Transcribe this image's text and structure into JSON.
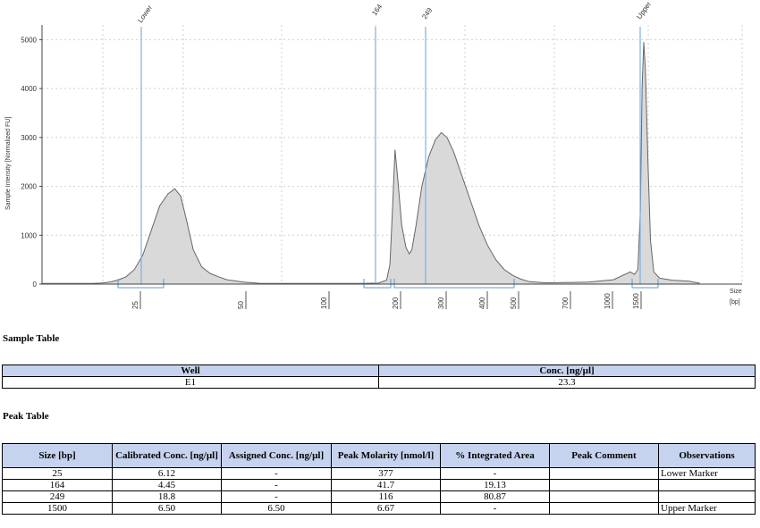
{
  "chart_data": {
    "type": "area",
    "ylabel": "Sample Intensity [Normalized FU]",
    "xlabel": "Size",
    "xunit": "[bp]",
    "ylim": [
      0,
      5300
    ],
    "yticks": [
      0,
      1000,
      2000,
      3000,
      4000,
      5000
    ],
    "xticks": [
      "25",
      "50",
      "100",
      "200",
      "300",
      "400",
      "500",
      "700",
      "1000",
      "1500"
    ],
    "grid": true,
    "markers": [
      {
        "label": "Lower",
        "size_bp": 25
      },
      {
        "label": "164",
        "size_bp": 164
      },
      {
        "label": "249",
        "size_bp": 249
      },
      {
        "label": "Upper",
        "size_bp": 1500
      }
    ],
    "series": [
      {
        "points": [
          [
            0,
            15
          ],
          [
            60,
            15
          ],
          [
            70,
            20
          ],
          [
            80,
            40
          ],
          [
            90,
            80
          ],
          [
            100,
            150
          ],
          [
            110,
            300
          ],
          [
            120,
            600
          ],
          [
            130,
            1100
          ],
          [
            140,
            1600
          ],
          [
            150,
            1850
          ],
          [
            158,
            1950
          ],
          [
            165,
            1800
          ],
          [
            172,
            1300
          ],
          [
            180,
            700
          ],
          [
            190,
            350
          ],
          [
            200,
            220
          ],
          [
            210,
            150
          ],
          [
            220,
            90
          ],
          [
            240,
            40
          ],
          [
            260,
            15
          ],
          [
            300,
            15
          ],
          [
            340,
            15
          ],
          [
            380,
            15
          ],
          [
            400,
            20
          ],
          [
            410,
            80
          ],
          [
            414,
            400
          ],
          [
            417,
            1500
          ],
          [
            420,
            2750
          ],
          [
            423,
            2200
          ],
          [
            428,
            1200
          ],
          [
            433,
            750
          ],
          [
            437,
            620
          ],
          [
            440,
            700
          ],
          [
            445,
            1200
          ],
          [
            452,
            2000
          ],
          [
            460,
            2600
          ],
          [
            468,
            2950
          ],
          [
            475,
            3100
          ],
          [
            482,
            3000
          ],
          [
            490,
            2700
          ],
          [
            500,
            2200
          ],
          [
            510,
            1700
          ],
          [
            520,
            1200
          ],
          [
            530,
            800
          ],
          [
            540,
            500
          ],
          [
            550,
            300
          ],
          [
            560,
            180
          ],
          [
            570,
            100
          ],
          [
            580,
            50
          ],
          [
            600,
            25
          ],
          [
            650,
            40
          ],
          [
            680,
            90
          ],
          [
            700,
            250
          ],
          [
            705,
            200
          ],
          [
            709,
            300
          ],
          [
            712,
            1500
          ],
          [
            714,
            4000
          ],
          [
            716,
            4950
          ],
          [
            718,
            4400
          ],
          [
            721,
            2500
          ],
          [
            724,
            900
          ],
          [
            728,
            250
          ],
          [
            735,
            120
          ],
          [
            750,
            80
          ],
          [
            770,
            60
          ],
          [
            782,
            20
          ]
        ]
      }
    ]
  },
  "sample_table": {
    "title": "Sample Table",
    "headers": [
      "Well",
      "Conc. [ng/µl]"
    ],
    "rows": [
      [
        "E1",
        "23.3"
      ]
    ]
  },
  "peak_table": {
    "title": "Peak Table",
    "headers": [
      "Size [bp]",
      "Calibrated Conc. [ng/µl]",
      "Assigned Conc. [ng/µl]",
      "Peak Molarity [nmol/l]",
      "% Integrated Area",
      "Peak Comment",
      "Observations"
    ],
    "rows": [
      [
        "25",
        "6.12",
        "-",
        "377",
        "-",
        "",
        "Lower Marker"
      ],
      [
        "164",
        "4.45",
        "-",
        "41.7",
        "19.13",
        "",
        ""
      ],
      [
        "249",
        "18.8",
        "-",
        "116",
        "80.87",
        "",
        ""
      ],
      [
        "1500",
        "6.50",
        "6.50",
        "6.67",
        "-",
        "",
        "Upper Marker"
      ]
    ]
  }
}
